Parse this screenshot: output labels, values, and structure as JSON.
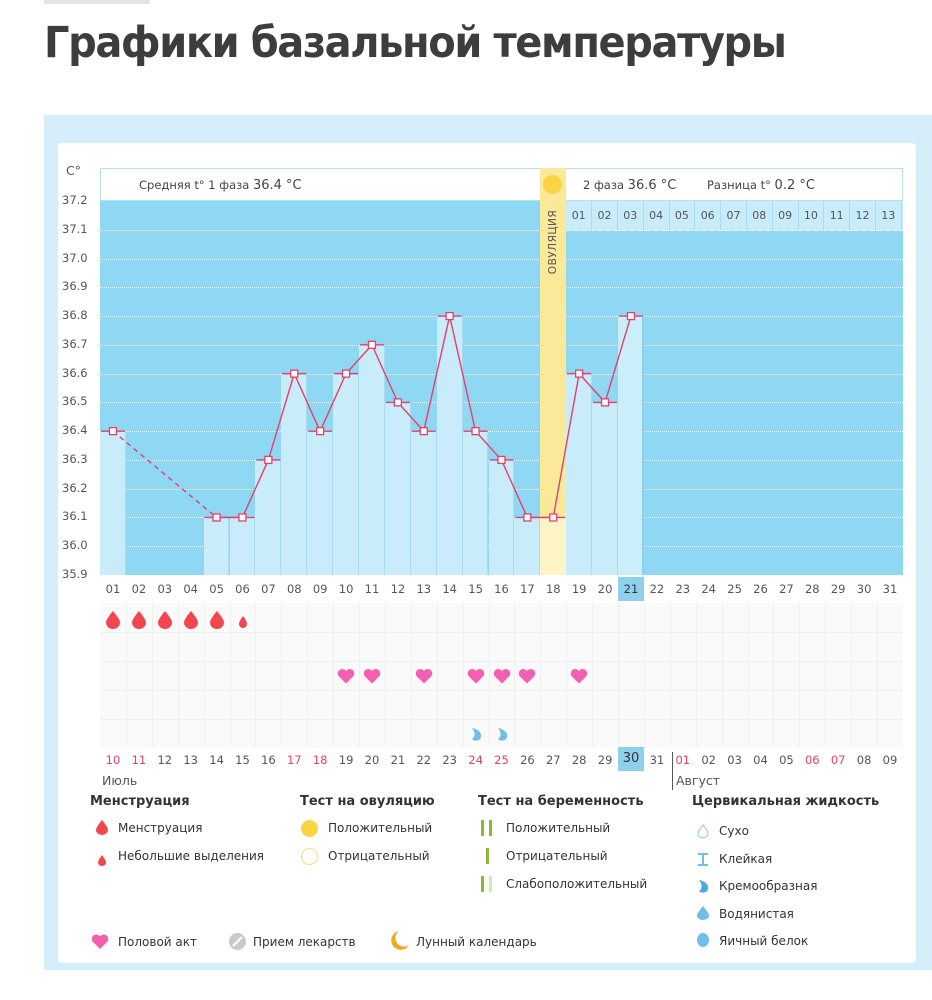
{
  "page": {
    "title": "Графики базальной температуры"
  },
  "header": {
    "phase1_label": "Средняя t° 1 фаза",
    "phase1_value": "36.4 °C",
    "phase2_label": "2 фаза",
    "phase2_value": "36.6 °C",
    "diff_label": "Разница t°",
    "diff_value": "0.2 °C",
    "ovulation_label": "ОВУЛЯЦИЯ",
    "unit": "C°"
  },
  "colors": {
    "plot_bg": "#8fd8f4",
    "bar": "#c9ecfa",
    "line": "#e2416a",
    "ovulation": "#fbe99a",
    "menstruation": "#f0474f",
    "heart": "#f55fb2",
    "fluid": "#6fbfea"
  },
  "chart_data": {
    "type": "line",
    "title": "Графики базальной температуры",
    "xlabel": "",
    "ylabel": "C°",
    "ylim": [
      35.9,
      37.2
    ],
    "yticks": [
      "37.2",
      "37.1",
      "37.0",
      "36.9",
      "36.8",
      "36.7",
      "36.6",
      "36.5",
      "36.4",
      "36.3",
      "36.2",
      "36.1",
      "36.0",
      "35.9"
    ],
    "grid": true,
    "cycle_days": [
      "01",
      "02",
      "03",
      "04",
      "05",
      "06",
      "07",
      "08",
      "09",
      "10",
      "11",
      "12",
      "13",
      "14",
      "15",
      "16",
      "17",
      "18",
      "19",
      "20",
      "21",
      "22",
      "23",
      "24",
      "25",
      "26",
      "27",
      "28",
      "29",
      "30",
      "31"
    ],
    "series": [
      {
        "name": "Базальная температура",
        "points": [
          {
            "day": "01",
            "value": 36.4
          },
          {
            "day": "05",
            "value": 36.1
          },
          {
            "day": "06",
            "value": 36.1
          },
          {
            "day": "07",
            "value": 36.3
          },
          {
            "day": "08",
            "value": 36.6
          },
          {
            "day": "09",
            "value": 36.4
          },
          {
            "day": "10",
            "value": 36.6
          },
          {
            "day": "11",
            "value": 36.7
          },
          {
            "day": "12",
            "value": 36.5
          },
          {
            "day": "13",
            "value": 36.4
          },
          {
            "day": "14",
            "value": 36.8
          },
          {
            "day": "15",
            "value": 36.4
          },
          {
            "day": "16",
            "value": 36.3
          },
          {
            "day": "17",
            "value": 36.1
          },
          {
            "day": "18",
            "value": 36.1
          },
          {
            "day": "19",
            "value": 36.6
          },
          {
            "day": "20",
            "value": 36.5
          },
          {
            "day": "21",
            "value": 36.8
          }
        ],
        "dashed_segment": [
          "01",
          "05"
        ]
      }
    ],
    "ovulation_day": "18",
    "highlighted_day": "21",
    "phase2_day_labels": [
      "01",
      "02",
      "03",
      "04",
      "05",
      "06",
      "07",
      "08",
      "09",
      "10",
      "11",
      "12",
      "13"
    ],
    "calendar_dates": [
      "10",
      "11",
      "12",
      "13",
      "14",
      "15",
      "16",
      "17",
      "18",
      "19",
      "20",
      "21",
      "22",
      "23",
      "24",
      "25",
      "26",
      "27",
      "28",
      "29",
      "30",
      "31",
      "01",
      "02",
      "03",
      "04",
      "05",
      "06",
      "07",
      "08",
      "09"
    ],
    "calendar_red_dates_index": [
      0,
      1,
      7,
      8,
      14,
      15,
      20,
      22,
      27,
      28
    ],
    "calendar_highlight_index": 20,
    "months": [
      "Июль",
      "Август"
    ],
    "markers": {
      "menstruation": [
        "01",
        "02",
        "03",
        "04",
        "05"
      ],
      "light_spotting": [
        "06"
      ],
      "intercourse": [
        "10",
        "11",
        "13",
        "15",
        "16",
        "17",
        "19"
      ],
      "creamy_fluid": [
        "15",
        "16"
      ]
    }
  },
  "legend": {
    "menstruation": {
      "title": "Менструация",
      "items": [
        "Менструация",
        "Небольшие выделения"
      ]
    },
    "ovulation_test": {
      "title": "Тест на овуляцию",
      "items": [
        "Положительный",
        "Отрицательный"
      ]
    },
    "pregnancy_test": {
      "title": "Тест на беременность",
      "items": [
        "Положительный",
        "Отрицательный",
        "Слабоположительный"
      ]
    },
    "cervical_fluid": {
      "title": "Цервикальная жидкость",
      "items": [
        "Сухо",
        "Клейкая",
        "Кремообразная",
        "Водянистая",
        "Яичный белок"
      ]
    },
    "other": {
      "items": [
        "Половой акт",
        "Прием лекарств",
        "Лунный календарь"
      ]
    }
  }
}
